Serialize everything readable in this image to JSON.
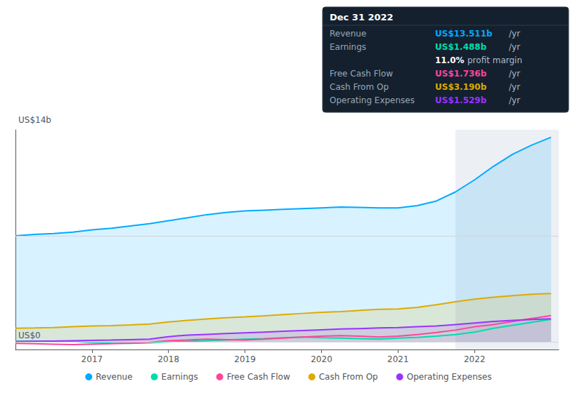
{
  "chart_data": {
    "type": "line",
    "x": [
      2016.0,
      2016.25,
      2016.5,
      2016.75,
      2017.0,
      2017.25,
      2017.5,
      2017.75,
      2018.0,
      2018.25,
      2018.5,
      2018.75,
      2019.0,
      2019.25,
      2019.5,
      2019.75,
      2020.0,
      2020.25,
      2020.5,
      2020.75,
      2021.0,
      2021.25,
      2021.5,
      2021.75,
      2022.0,
      2022.25,
      2022.5,
      2022.75,
      2023.0
    ],
    "series": [
      {
        "name": "Revenue",
        "type": "area",
        "color": "#00aaff",
        "values": [
          7.0,
          7.1,
          7.15,
          7.25,
          7.4,
          7.5,
          7.65,
          7.8,
          8.0,
          8.2,
          8.4,
          8.55,
          8.65,
          8.7,
          8.75,
          8.8,
          8.85,
          8.9,
          8.88,
          8.85,
          8.85,
          9.0,
          9.3,
          9.9,
          10.7,
          11.6,
          12.4,
          13.0,
          13.511
        ]
      },
      {
        "name": "Earnings",
        "type": "line",
        "color": "#00ddaa",
        "values": [
          0.05,
          0.04,
          0.03,
          0.02,
          -0.05,
          -0.08,
          -0.1,
          -0.06,
          0.0,
          0.04,
          0.08,
          0.12,
          0.18,
          0.22,
          0.28,
          0.32,
          0.28,
          0.25,
          0.22,
          0.18,
          0.25,
          0.3,
          0.38,
          0.48,
          0.65,
          0.9,
          1.1,
          1.3,
          1.488
        ]
      },
      {
        "name": "Free Cash Flow",
        "type": "line",
        "color": "#ff4499",
        "values": [
          -0.1,
          -0.12,
          -0.15,
          -0.18,
          -0.15,
          -0.12,
          -0.08,
          -0.02,
          0.08,
          0.12,
          0.18,
          0.15,
          0.12,
          0.18,
          0.25,
          0.32,
          0.38,
          0.42,
          0.38,
          0.32,
          0.38,
          0.48,
          0.62,
          0.78,
          1.0,
          1.15,
          1.35,
          1.55,
          1.736
        ]
      },
      {
        "name": "Cash From Op",
        "type": "area",
        "color": "#ddaa00",
        "values": [
          0.9,
          0.92,
          0.95,
          1.0,
          1.05,
          1.08,
          1.12,
          1.18,
          1.32,
          1.42,
          1.52,
          1.6,
          1.65,
          1.72,
          1.8,
          1.88,
          1.95,
          2.0,
          2.08,
          2.15,
          2.18,
          2.28,
          2.45,
          2.65,
          2.82,
          2.95,
          3.05,
          3.15,
          3.19
        ]
      },
      {
        "name": "Operating Expenses",
        "type": "area",
        "color": "#9933ff",
        "values": [
          0.02,
          0.04,
          0.06,
          0.08,
          0.1,
          0.12,
          0.15,
          0.18,
          0.35,
          0.45,
          0.5,
          0.55,
          0.6,
          0.65,
          0.7,
          0.75,
          0.8,
          0.85,
          0.88,
          0.92,
          0.95,
          1.0,
          1.05,
          1.15,
          1.25,
          1.35,
          1.42,
          1.48,
          1.529
        ]
      }
    ],
    "xlim": [
      2016.0,
      2023.1
    ],
    "xticks": [
      2017,
      2018,
      2019,
      2020,
      2021,
      2022
    ],
    "ylim": [
      -0.5,
      14.0
    ],
    "yticks": [
      0,
      7
    ],
    "grid": true,
    "tick_labels": "x",
    "legend": "bottom",
    "highlight_range": [
      2021.75,
      2023.1
    ],
    "annotations": [
      {
        "text": "US$14b",
        "x": 2016.0,
        "y": 14.3
      },
      {
        "text": "US$0",
        "x": 2016.0,
        "y": 0.05
      }
    ],
    "info_box": {
      "title": "Dec 31 2022",
      "rows": [
        {
          "label": "Revenue",
          "value": "US$13.511b",
          "unit": "/yr",
          "color": "#00aaff"
        },
        {
          "label": "Earnings",
          "value": "US$1.488b",
          "unit": "/yr",
          "color": "#00ddaa"
        },
        {
          "label": null,
          "value": "11.0%",
          "unit": "profit margin",
          "color": "#ffffff"
        },
        {
          "label": "Free Cash Flow",
          "value": "US$1.736b",
          "unit": "/yr",
          "color": "#ff4499"
        },
        {
          "label": "Cash From Op",
          "value": "US$3.190b",
          "unit": "/yr",
          "color": "#ddaa00"
        },
        {
          "label": "Operating Expenses",
          "value": "US$1.529b",
          "unit": "/yr",
          "color": "#9933ff"
        }
      ]
    }
  }
}
